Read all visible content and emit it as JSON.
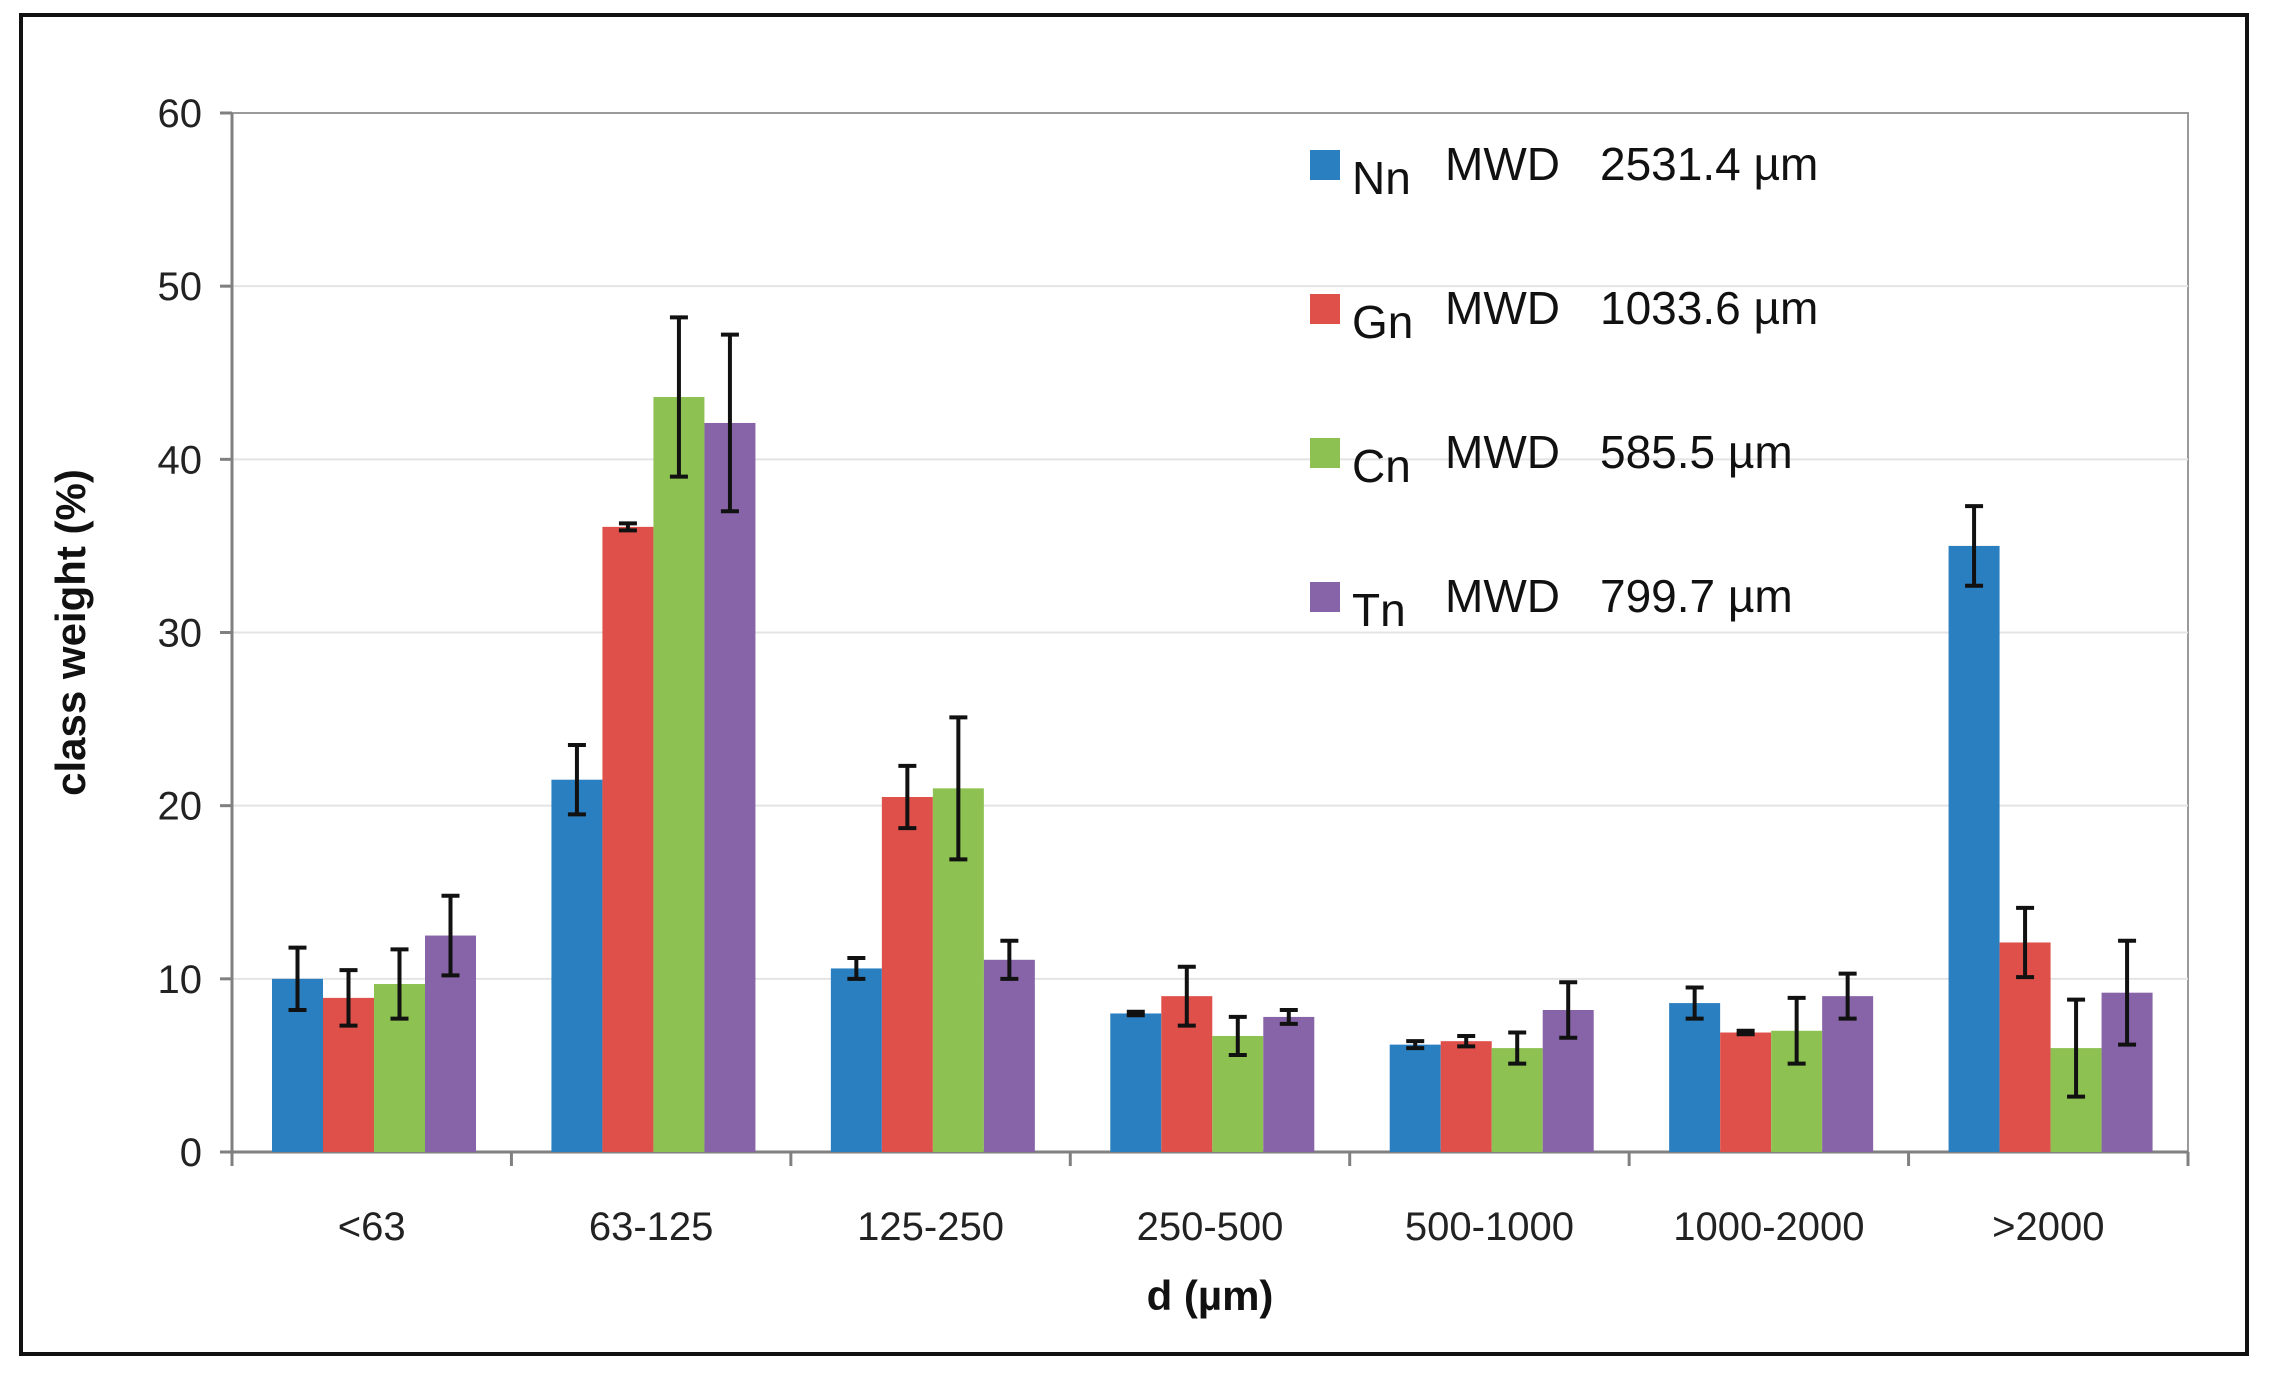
{
  "chart_data": {
    "type": "bar",
    "title": "",
    "xlabel": "d (µm)",
    "ylabel": "class weight (%)",
    "ylim": [
      0,
      60
    ],
    "yticks": [
      0,
      10,
      20,
      30,
      40,
      50,
      60
    ],
    "grid": true,
    "legend_position": "top-right",
    "categories": [
      "<63",
      "63-125",
      "125-250",
      "250-500",
      "500-1000",
      "1000-2000",
      ">2000"
    ],
    "series": [
      {
        "name": "Nn",
        "mwd_label": "MWD",
        "mwd_value": "2531.4 µm",
        "color": "#2a7fc0",
        "values": [
          10.0,
          21.5,
          10.6,
          8.0,
          6.2,
          8.6,
          35.0
        ],
        "errors": [
          1.8,
          2.0,
          0.6,
          0.1,
          0.2,
          0.9,
          2.3
        ]
      },
      {
        "name": "Gn",
        "mwd_label": "MWD",
        "mwd_value": "1033.6 µm",
        "color": "#e0504a",
        "values": [
          8.9,
          36.1,
          20.5,
          9.0,
          6.4,
          6.9,
          12.1
        ],
        "errors": [
          1.6,
          0.2,
          1.8,
          1.7,
          0.3,
          0.1,
          2.0
        ]
      },
      {
        "name": "Cn",
        "mwd_label": "MWD",
        "mwd_value": "585.5 µm",
        "color": "#8dc151",
        "values": [
          9.7,
          43.6,
          21.0,
          6.7,
          6.0,
          7.0,
          6.0
        ],
        "errors": [
          2.0,
          4.6,
          4.1,
          1.1,
          0.9,
          1.9,
          2.8
        ]
      },
      {
        "name": "Tn",
        "mwd_label": "MWD",
        "mwd_value": "799.7 µm",
        "color": "#8764a8",
        "values": [
          12.5,
          42.1,
          11.1,
          7.8,
          8.2,
          9.0,
          9.2
        ],
        "errors": [
          2.3,
          5.1,
          1.1,
          0.4,
          1.6,
          1.3,
          3.0
        ]
      }
    ]
  }
}
